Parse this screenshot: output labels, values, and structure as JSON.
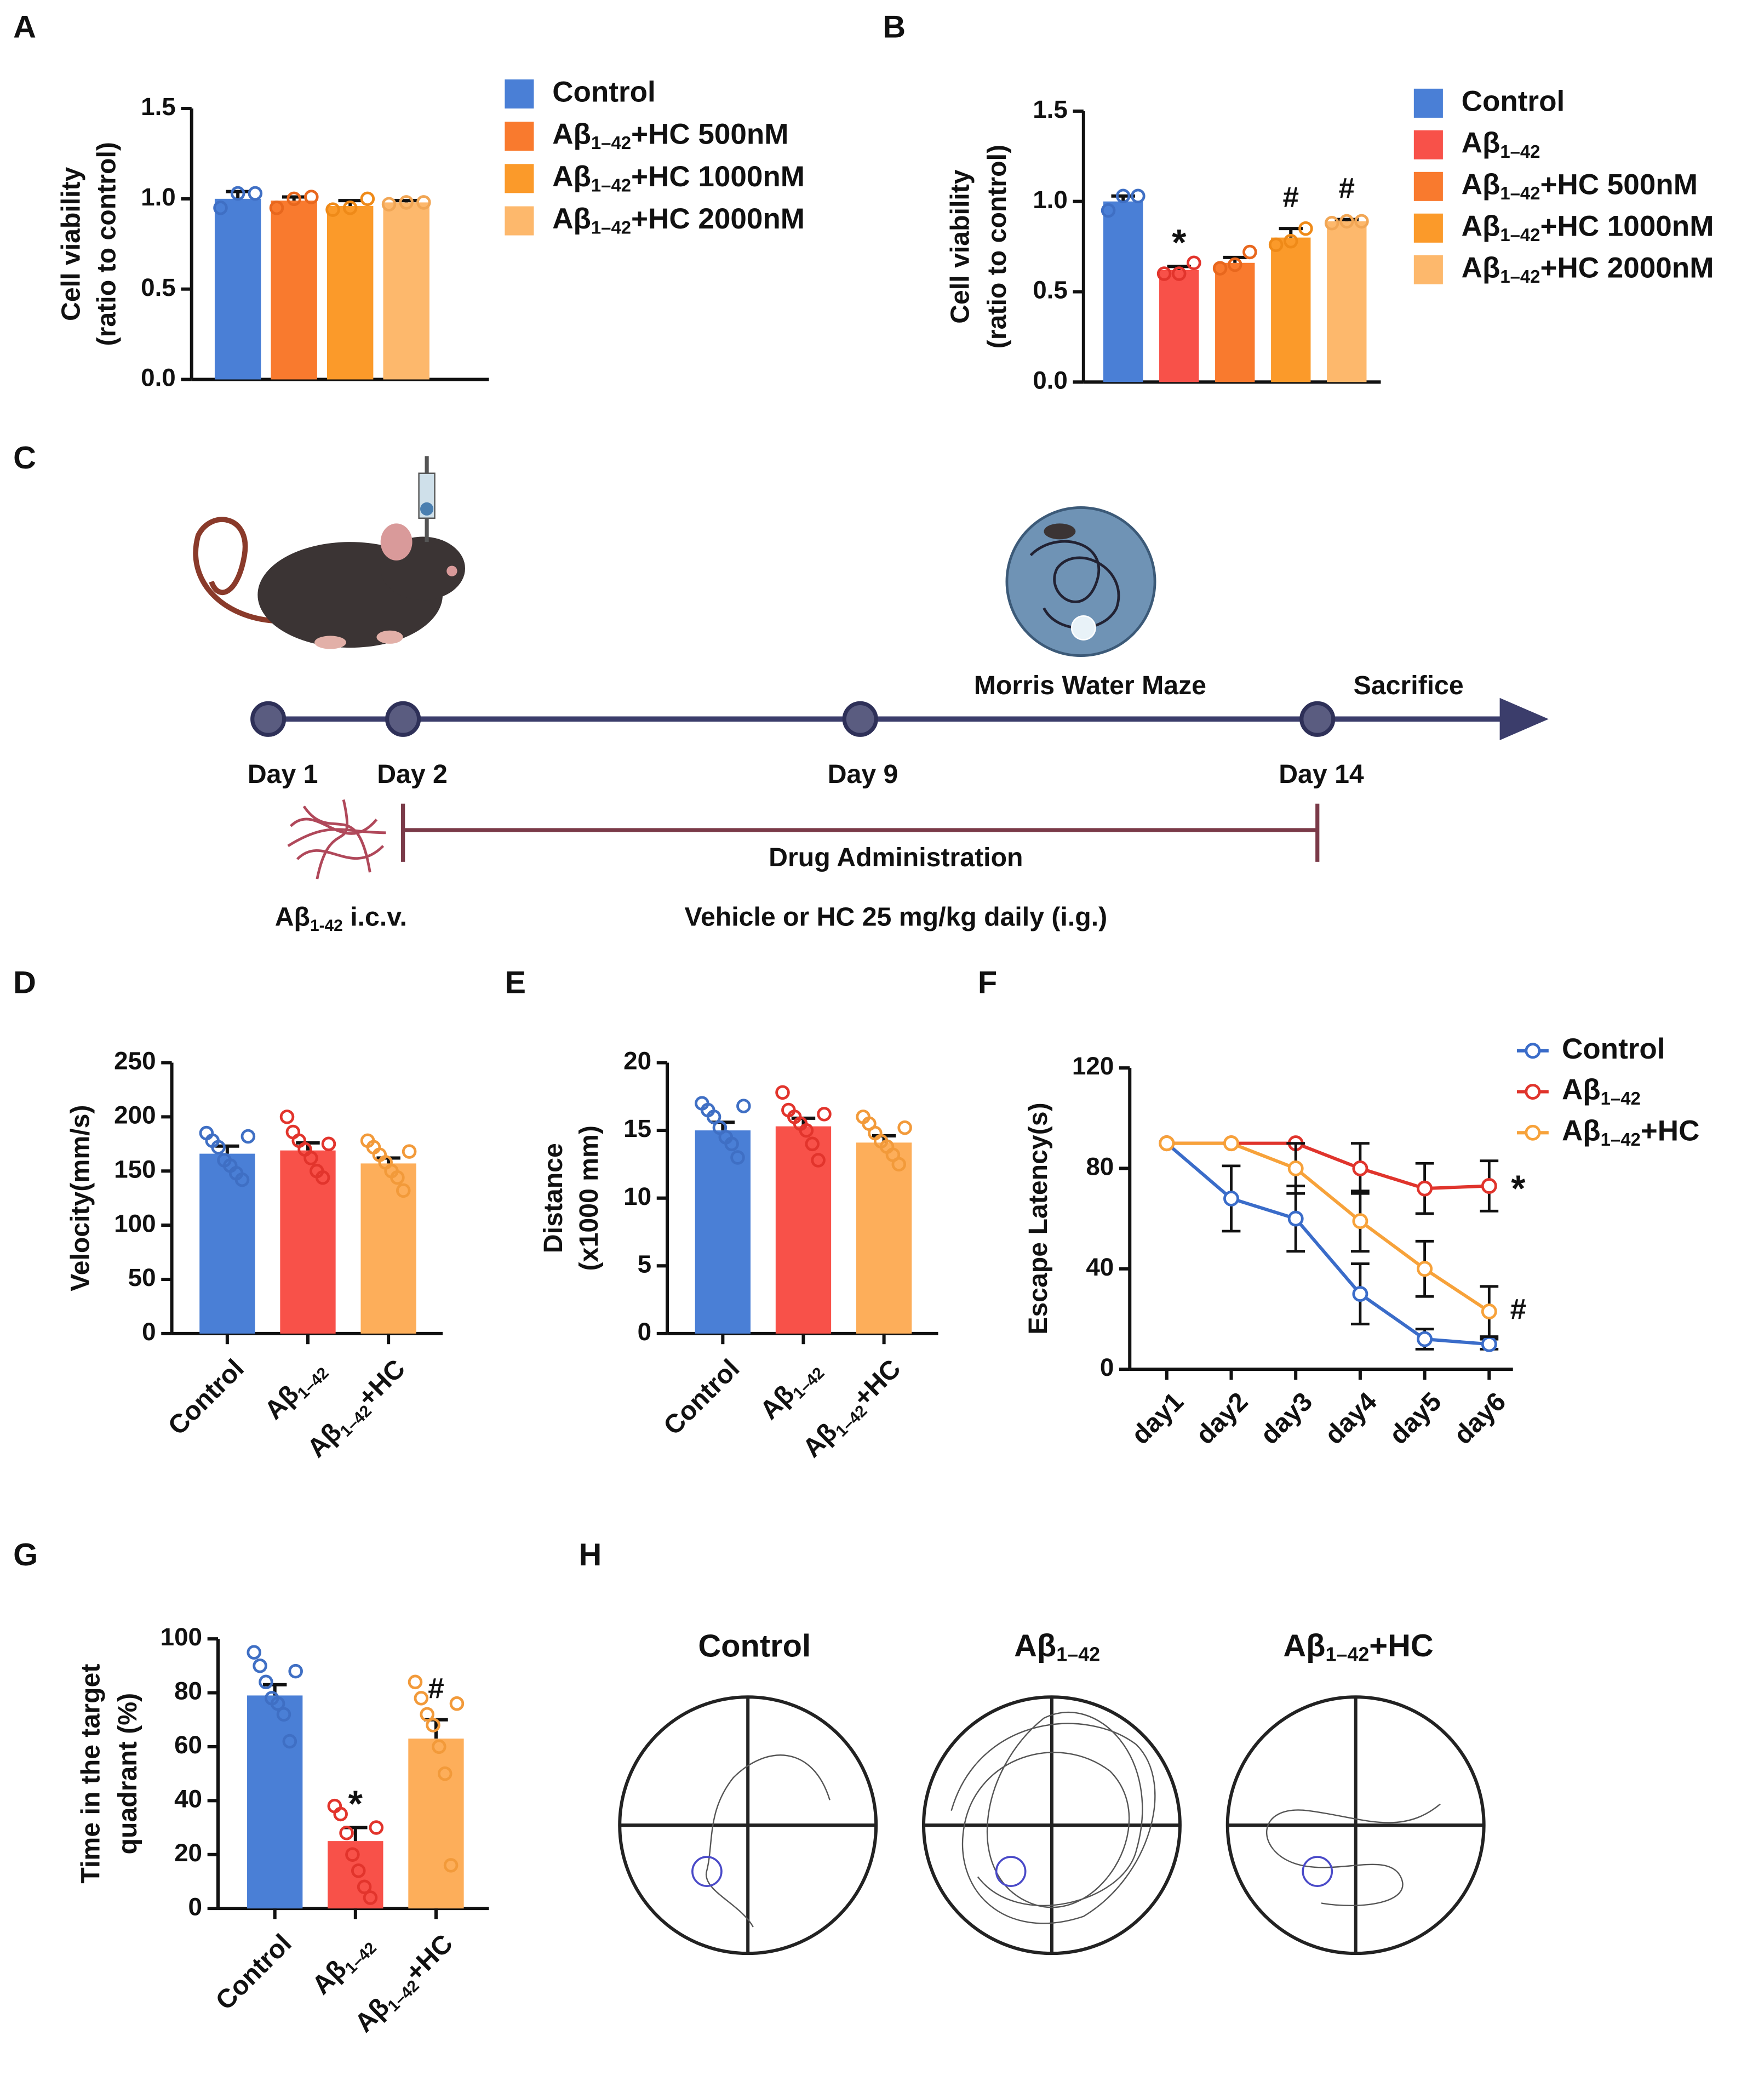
{
  "chart_data": [
    {
      "type": "bar",
      "panel": "A",
      "ylabel": [
        "Cell viability",
        "(ratio to control)"
      ],
      "legend": "right",
      "categories": [
        "Control",
        "Aβ1–42+HC 500nM",
        "Aβ1–42+HC 1000nM",
        "Aβ1–42+HC 2000nM"
      ],
      "values": [
        1.0,
        0.99,
        0.96,
        0.98
      ],
      "errors": [
        0.04,
        0.02,
        0.03,
        0.01
      ],
      "points": [
        [
          0.95,
          1.03,
          1.03
        ],
        [
          0.95,
          1.0,
          1.01
        ],
        [
          0.94,
          0.95,
          1.0
        ],
        [
          0.97,
          0.98,
          0.98
        ]
      ],
      "colors": [
        "#4a7fd6",
        "#f97a2e",
        "#fb9a2a",
        "#fdb86c"
      ],
      "point_colors": [
        "#3f6fc4",
        "#e8671d",
        "#ef8a18",
        "#f1a655"
      ],
      "ylim": [
        0,
        1.5
      ],
      "yticks": [
        {
          "value": 0,
          "label": "0.0"
        },
        {
          "value": 0.5,
          "label": "0.5"
        },
        {
          "value": 1.0,
          "label": "1.0"
        },
        {
          "value": 1.5,
          "label": "1.5"
        }
      ]
    },
    {
      "type": "bar",
      "panel": "B",
      "ylabel": [
        "Cell viability",
        "(ratio to control)"
      ],
      "legend": "right",
      "categories": [
        "Control",
        "Aβ1–42",
        "Aβ1–42+HC 500nM",
        "Aβ1–42+HC 1000nM",
        "Aβ1–42+HC 2000nM"
      ],
      "values": [
        1.0,
        0.62,
        0.66,
        0.8,
        0.89
      ],
      "errors": [
        0.03,
        0.02,
        0.03,
        0.05,
        0.01
      ],
      "points": [
        [
          0.95,
          1.03,
          1.03
        ],
        [
          0.6,
          0.6,
          0.66
        ],
        [
          0.63,
          0.65,
          0.72
        ],
        [
          0.76,
          0.78,
          0.85
        ],
        [
          0.88,
          0.89,
          0.89
        ]
      ],
      "colors": [
        "#4a7fd6",
        "#f85149",
        "#f97a2e",
        "#fb9a2a",
        "#fdb86c"
      ],
      "point_colors": [
        "#3f6fc4",
        "#e2342c",
        "#e8671d",
        "#ef8a18",
        "#f1a655"
      ],
      "annotations": [
        {
          "index": 1,
          "text": "*"
        },
        {
          "index": 3,
          "text": "#"
        },
        {
          "index": 4,
          "text": "#"
        }
      ],
      "ylim": [
        0,
        1.5
      ],
      "yticks": [
        {
          "value": 0,
          "label": "0.0"
        },
        {
          "value": 0.5,
          "label": "0.5"
        },
        {
          "value": 1.0,
          "label": "1.0"
        },
        {
          "value": 1.5,
          "label": "1.5"
        }
      ]
    },
    {
      "type": "bar",
      "panel": "D",
      "ylabel": [
        "Velocity(mm/s)"
      ],
      "categories": [
        "Control",
        "Aβ1–42",
        "Aβ1–42+HC"
      ],
      "values": [
        166,
        169,
        157
      ],
      "errors": [
        7,
        7,
        5
      ],
      "points": [
        [
          185,
          178,
          172,
          160,
          155,
          148,
          142,
          182
        ],
        [
          200,
          186,
          178,
          170,
          162,
          150,
          144,
          175
        ],
        [
          178,
          172,
          165,
          158,
          150,
          144,
          132,
          168
        ]
      ],
      "colors": [
        "#4a7fd6",
        "#f85149",
        "#fdae5a"
      ],
      "point_colors": [
        "#3f6fc4",
        "#e2342c",
        "#f29a3a"
      ],
      "ylim": [
        0,
        250
      ],
      "yticks": [
        0,
        50,
        100,
        150,
        200,
        250
      ]
    },
    {
      "type": "bar",
      "panel": "E",
      "ylabel": [
        "Distance",
        "(x1000 mm)"
      ],
      "categories": [
        "Control",
        "Aβ1–42",
        "Aβ1–42+HC"
      ],
      "values": [
        15.0,
        15.3,
        14.1
      ],
      "errors": [
        0.6,
        0.6,
        0.5
      ],
      "points": [
        [
          17.0,
          16.5,
          16.0,
          15.2,
          14.5,
          14.0,
          13.0,
          16.8
        ],
        [
          17.8,
          16.5,
          16.0,
          15.5,
          15.0,
          14.0,
          12.8,
          16.2
        ],
        [
          16.0,
          15.5,
          14.8,
          14.2,
          13.8,
          13.2,
          12.5,
          15.2
        ]
      ],
      "colors": [
        "#4a7fd6",
        "#f85149",
        "#fdae5a"
      ],
      "point_colors": [
        "#3f6fc4",
        "#e2342c",
        "#f29a3a"
      ],
      "ylim": [
        0,
        20
      ],
      "yticks": [
        0,
        5,
        10,
        15,
        20
      ]
    },
    {
      "type": "line",
      "panel": "F",
      "ylabel": [
        "Escape Latency(s)"
      ],
      "legend": "right",
      "categories": [
        "day1",
        "day2",
        "day3",
        "day4",
        "day5",
        "day6"
      ],
      "series": [
        {
          "name": "Control",
          "color": "#3a6cc9",
          "values": [
            90,
            68,
            60,
            30,
            12,
            10
          ],
          "errors": [
            0,
            13,
            13,
            12,
            4,
            2
          ]
        },
        {
          "name": "Aβ1–42",
          "color": "#e0342c",
          "values": [
            90,
            90,
            90,
            80,
            72,
            73
          ],
          "errors": [
            0,
            0,
            0,
            10,
            10,
            10
          ],
          "annotation": "*"
        },
        {
          "name": "Aβ1–42+HC",
          "color": "#f7a23a",
          "values": [
            90,
            90,
            80,
            59,
            40,
            23
          ],
          "errors": [
            0,
            0,
            10,
            12,
            11,
            10
          ],
          "annotation": "#"
        }
      ],
      "ylim": [
        0,
        120
      ],
      "yticks": [
        0,
        40,
        80,
        120
      ]
    },
    {
      "type": "bar",
      "panel": "G",
      "ylabel": [
        "Time in the target",
        "quadrant (%)"
      ],
      "categories": [
        "Control",
        "Aβ1–42",
        "Aβ1–42+HC"
      ],
      "values": [
        79,
        25,
        63
      ],
      "errors": [
        4,
        5,
        7
      ],
      "points": [
        [
          95,
          90,
          84,
          78,
          76,
          72,
          62,
          88
        ],
        [
          38,
          35,
          28,
          20,
          14,
          8,
          4,
          30
        ],
        [
          84,
          78,
          72,
          68,
          60,
          50,
          16,
          76
        ]
      ],
      "colors": [
        "#4a7fd6",
        "#f85149",
        "#fdae5a"
      ],
      "point_colors": [
        "#3f6fc4",
        "#e2342c",
        "#f29a3a"
      ],
      "annotations": [
        {
          "index": 1,
          "text": "*"
        },
        {
          "index": 2,
          "text": "#"
        }
      ],
      "ylim": [
        0,
        100
      ],
      "yticks": [
        0,
        20,
        40,
        60,
        80,
        100
      ]
    }
  ],
  "timeline": {
    "panel": "C",
    "days": [
      "Day 1",
      "Day 2",
      "Day 9",
      "Day 14"
    ],
    "events": [
      "Morris Water Maze",
      "Sacrifice"
    ],
    "drug": "Drug Administration",
    "dose": "Vehicle or HC 25 mg/kg daily (i.g.)",
    "injection": "Aβ1-42  i.c.v."
  },
  "trajectories": {
    "panel": "H",
    "groups": [
      "Control",
      "Aβ1–42",
      "Aβ1–42+HC"
    ]
  }
}
